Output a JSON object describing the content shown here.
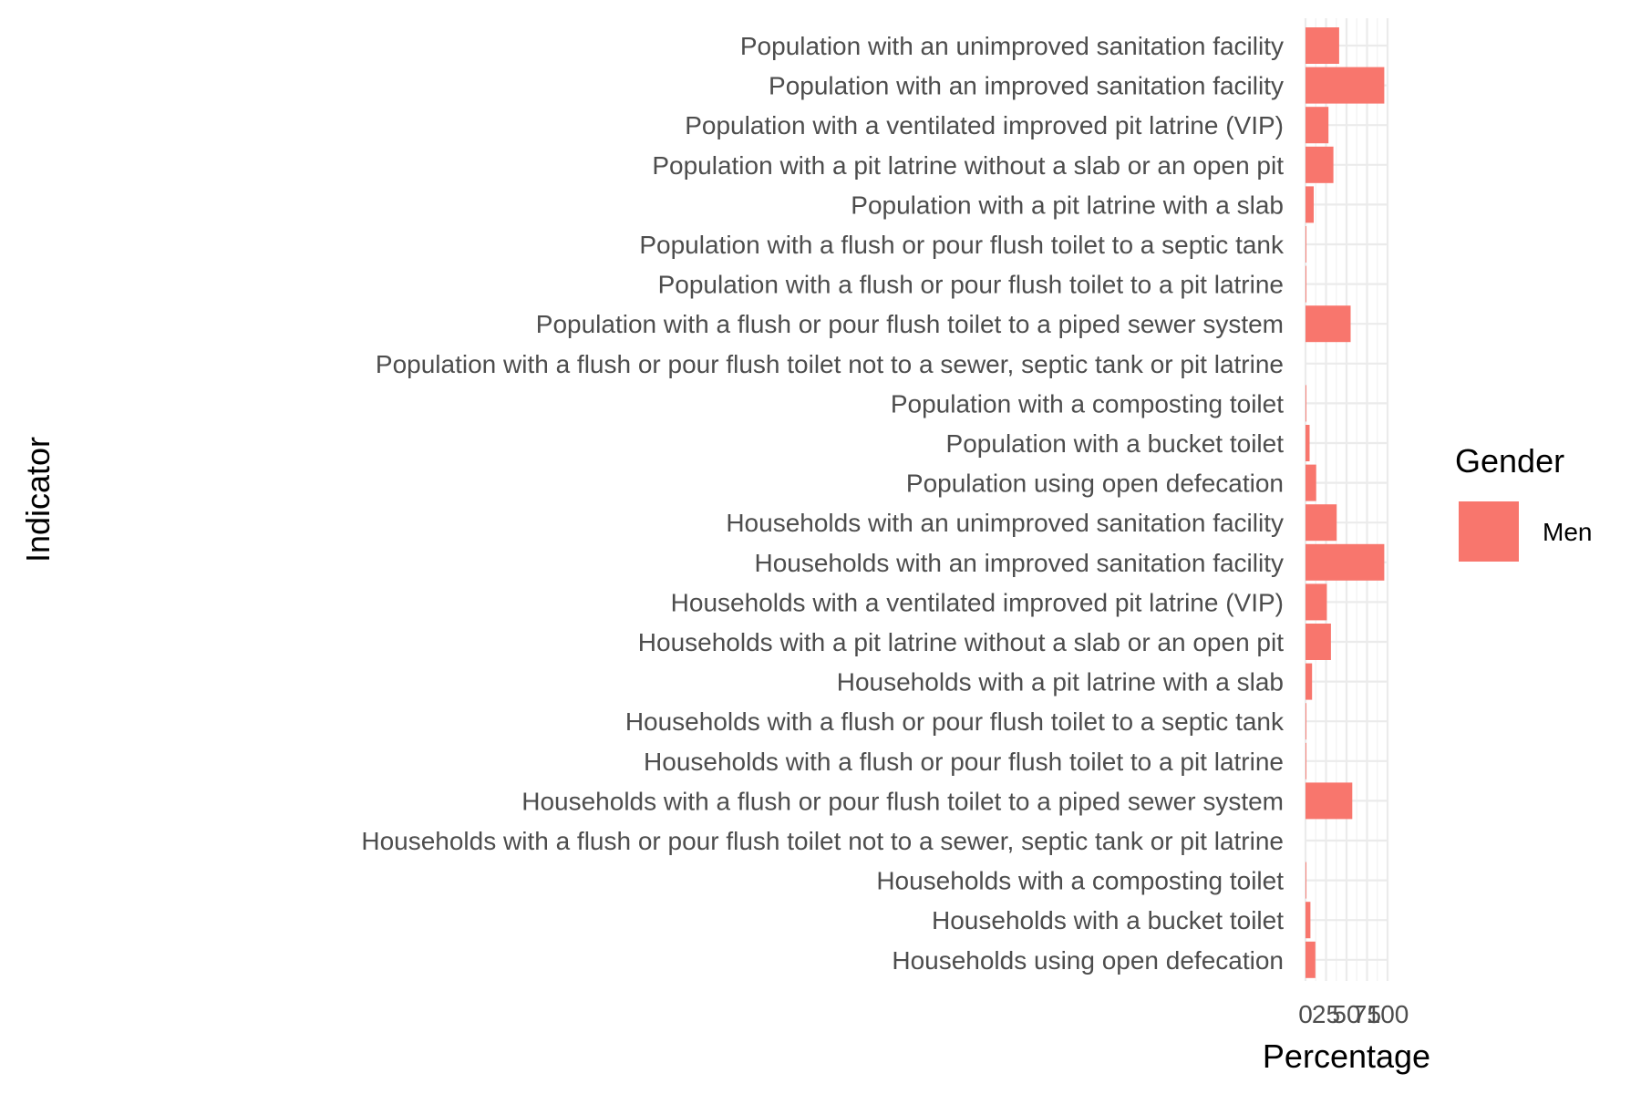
{
  "chart_data": {
    "type": "bar",
    "orientation": "horizontal",
    "title": "",
    "xlabel": "Percentage",
    "ylabel": "Indicator",
    "xlim": [
      0,
      100
    ],
    "x_ticks": [
      "0",
      "25",
      "50",
      "75",
      "100"
    ],
    "grid": true,
    "legend_position": "right",
    "legend_title": "Gender",
    "categories": [
      "Population with an unimproved sanitation facility",
      "Population with an improved sanitation facility",
      "Population with a ventilated improved pit latrine (VIP)",
      "Population with a pit latrine without a slab or an open pit",
      "Population with a pit latrine with a slab",
      "Population with a flush or pour flush toilet to a septic tank",
      "Population with a flush or pour flush toilet to a pit latrine",
      "Population with a flush or pour flush toilet to a piped sewer system",
      "Population with a flush or pour flush toilet not to a sewer, septic tank or pit latrine",
      "Population with a composting toilet",
      "Population with a bucket toilet",
      "Population using open defecation",
      "Households with an unimproved sanitation facility",
      "Households with an improved sanitation facility",
      "Households with a ventilated improved pit latrine (VIP)",
      "Households with a pit latrine without a slab or an open pit",
      "Households with a pit latrine with a slab",
      "Households with a flush or pour flush toilet to a septic tank",
      "Households with a flush or pour flush toilet to a pit latrine",
      "Households with a flush or pour flush toilet to a piped sewer system",
      "Households with a flush or pour flush toilet not to a sewer, septic tank or pit latrine",
      "Households with a composting toilet",
      "Households with a bucket toilet",
      "Households using open defecation"
    ],
    "series": [
      {
        "name": "Men",
        "color": "#F8766D",
        "values": [
          41,
          96,
          28,
          34,
          10,
          1,
          1,
          55,
          0,
          1,
          5,
          13,
          38,
          96,
          26,
          31,
          8,
          1,
          1,
          57,
          0,
          1,
          6,
          12
        ]
      }
    ]
  }
}
